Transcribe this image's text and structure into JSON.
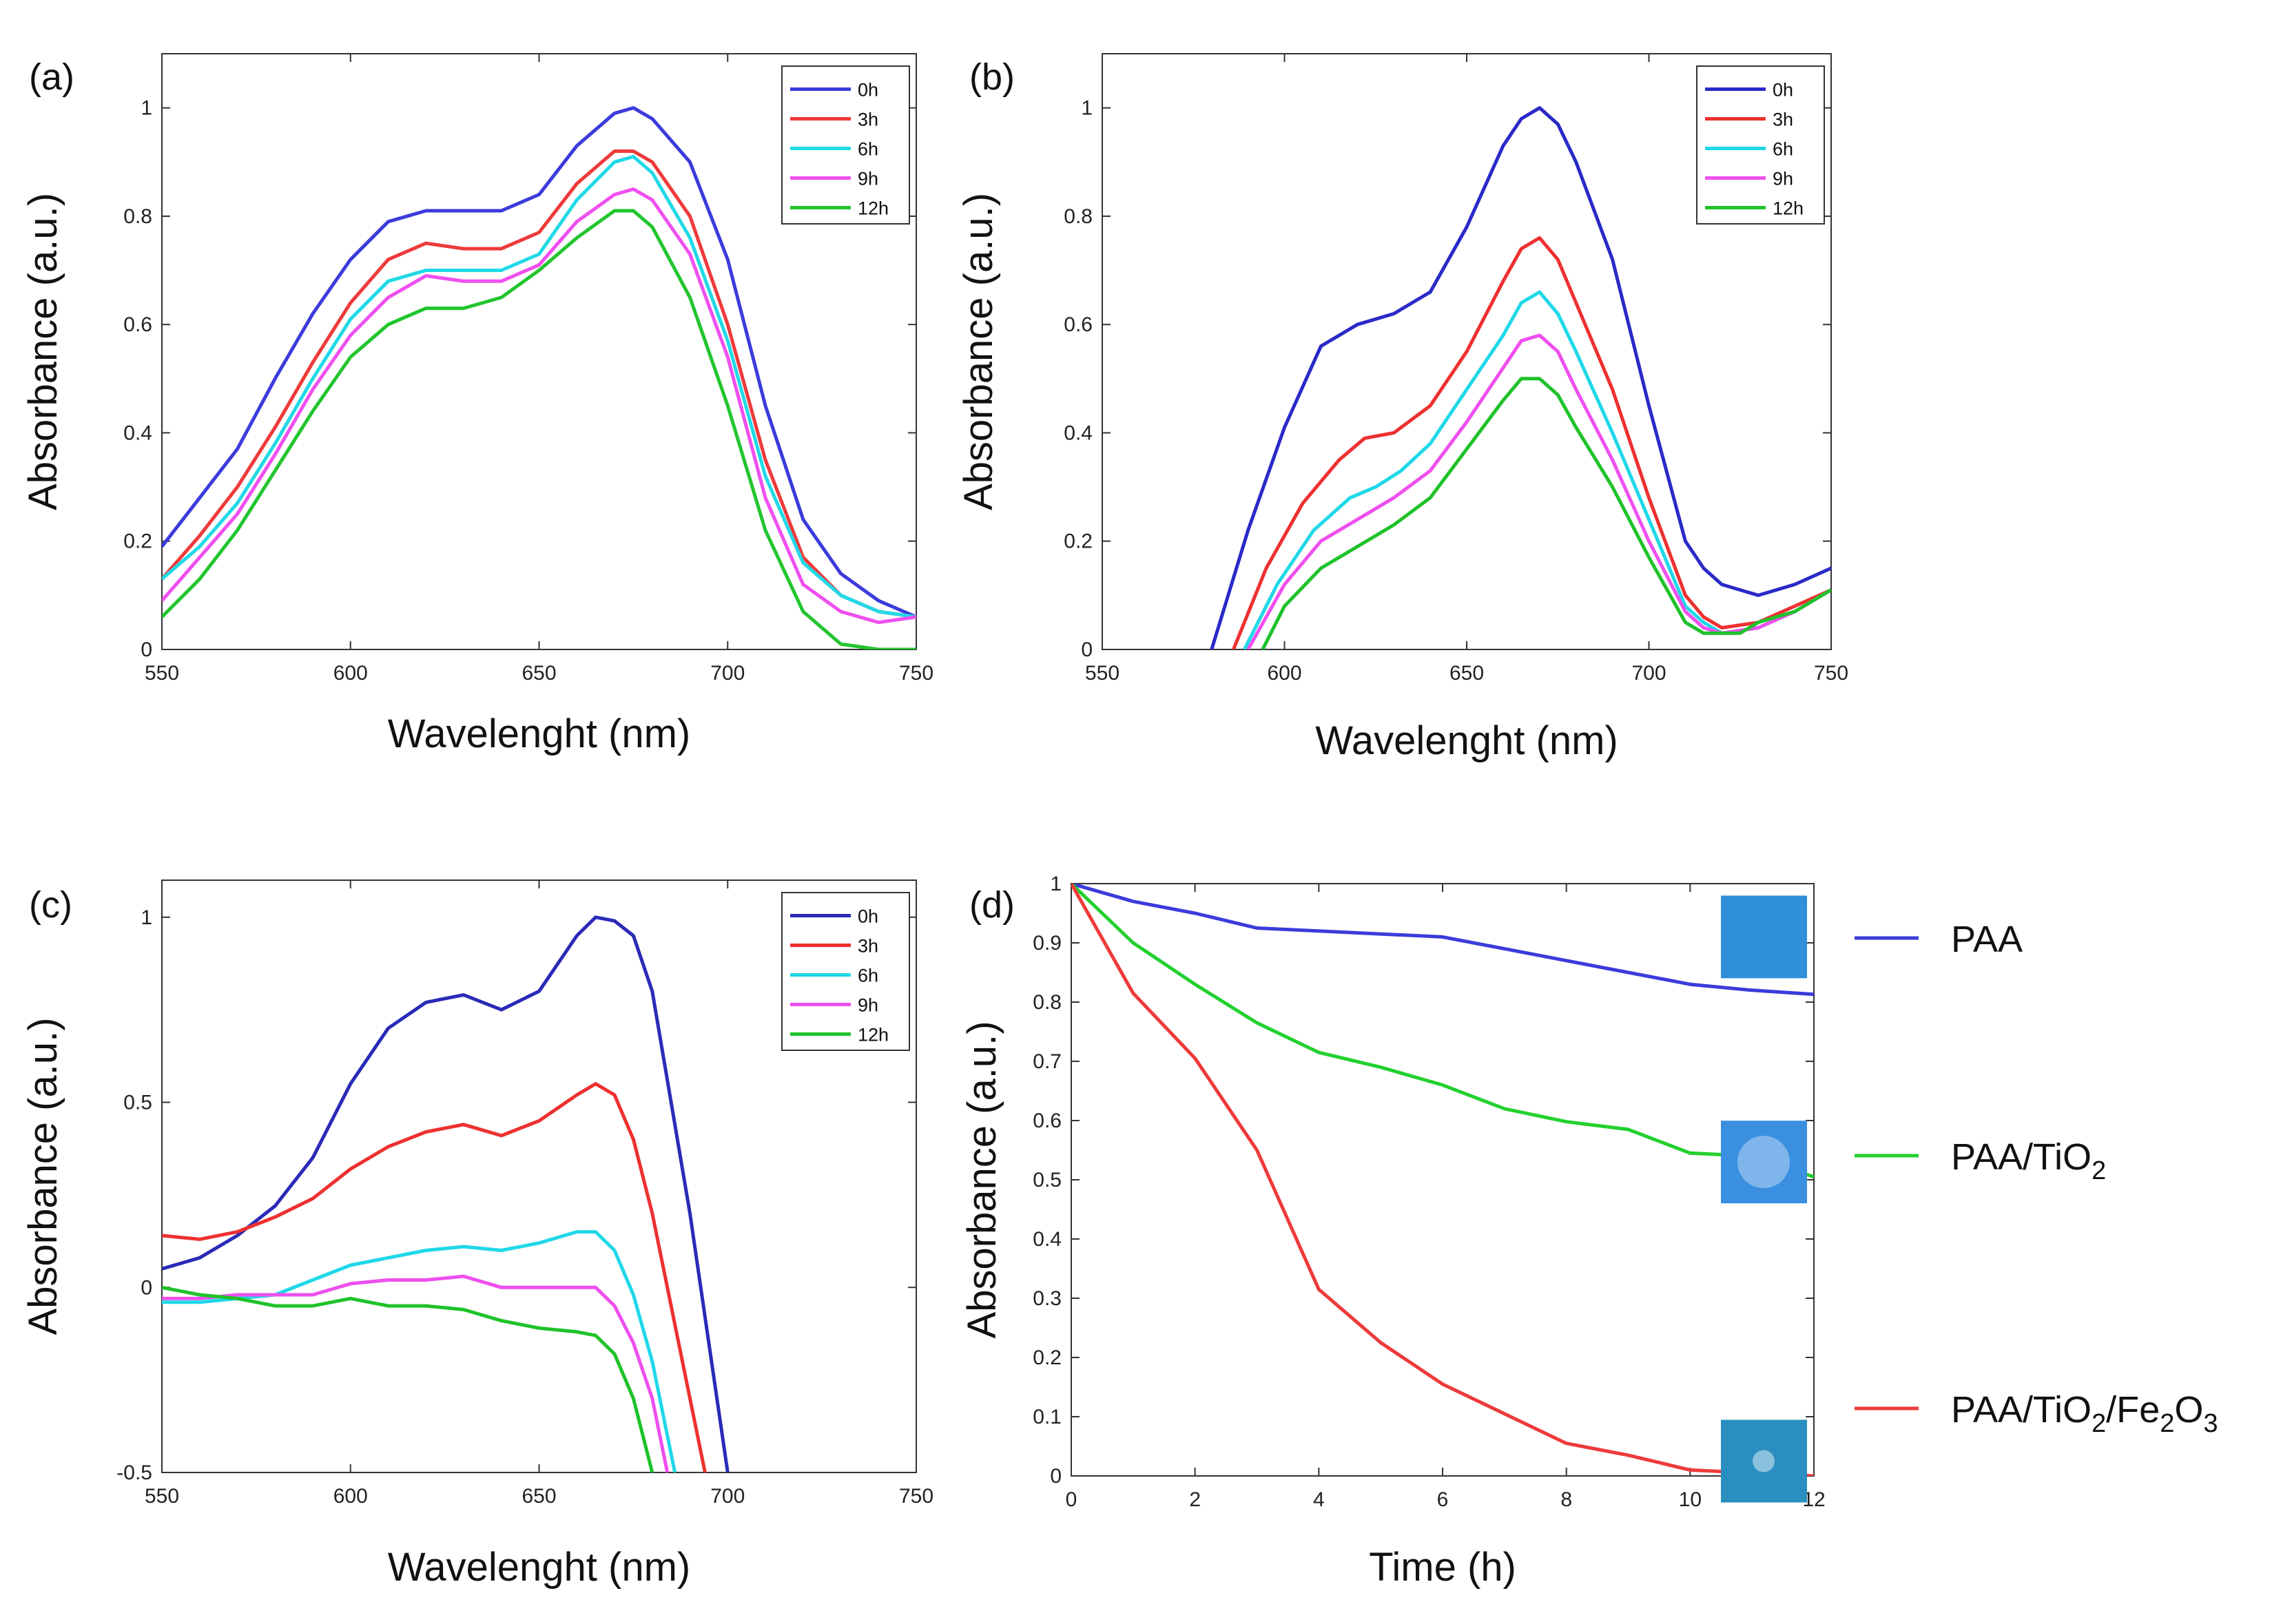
{
  "chart_data": [
    {
      "panel": "(a)",
      "type": "line",
      "xlabel": "Wavelenght (nm)",
      "ylabel": "Absorbance  (a.u.)",
      "xlim": [
        550,
        750
      ],
      "ylim": [
        0,
        1.1
      ],
      "xticks": [
        550,
        600,
        650,
        700,
        750
      ],
      "yticks": [
        0,
        0.2,
        0.4,
        0.6,
        0.8,
        1
      ],
      "legend": "top-right",
      "colors": [
        "#3b3bdc",
        "#ee3a3a",
        "#21d9e6",
        "#ef4fef",
        "#22c52e"
      ],
      "series": [
        {
          "name": "0h",
          "x": [
            550,
            560,
            570,
            580,
            590,
            600,
            610,
            620,
            630,
            640,
            650,
            660,
            670,
            675,
            680,
            690,
            700,
            710,
            720,
            730,
            740,
            750
          ],
          "y": [
            0.19,
            0.28,
            0.37,
            0.5,
            0.62,
            0.72,
            0.79,
            0.81,
            0.81,
            0.81,
            0.84,
            0.93,
            0.99,
            1.0,
            0.98,
            0.9,
            0.72,
            0.45,
            0.24,
            0.14,
            0.09,
            0.06
          ]
        },
        {
          "name": "3h",
          "x": [
            550,
            560,
            570,
            580,
            590,
            600,
            610,
            620,
            630,
            640,
            650,
            660,
            670,
            675,
            680,
            690,
            700,
            710,
            720,
            730,
            740,
            750
          ],
          "y": [
            0.13,
            0.21,
            0.3,
            0.41,
            0.53,
            0.64,
            0.72,
            0.75,
            0.74,
            0.74,
            0.77,
            0.86,
            0.92,
            0.92,
            0.9,
            0.8,
            0.6,
            0.35,
            0.17,
            0.1,
            0.07,
            0.06
          ]
        },
        {
          "name": "6h",
          "x": [
            550,
            560,
            570,
            580,
            590,
            600,
            610,
            620,
            630,
            640,
            650,
            660,
            670,
            675,
            680,
            690,
            700,
            710,
            720,
            730,
            740,
            750
          ],
          "y": [
            0.13,
            0.19,
            0.27,
            0.38,
            0.5,
            0.61,
            0.68,
            0.7,
            0.7,
            0.7,
            0.73,
            0.83,
            0.9,
            0.91,
            0.88,
            0.76,
            0.57,
            0.32,
            0.16,
            0.1,
            0.07,
            0.06
          ]
        },
        {
          "name": "9h",
          "x": [
            550,
            560,
            570,
            580,
            590,
            600,
            610,
            620,
            630,
            640,
            650,
            660,
            670,
            675,
            680,
            690,
            700,
            710,
            720,
            730,
            740,
            750
          ],
          "y": [
            0.09,
            0.17,
            0.25,
            0.36,
            0.48,
            0.58,
            0.65,
            0.69,
            0.68,
            0.68,
            0.71,
            0.79,
            0.84,
            0.85,
            0.83,
            0.73,
            0.54,
            0.28,
            0.12,
            0.07,
            0.05,
            0.06
          ]
        },
        {
          "name": "12h",
          "x": [
            550,
            560,
            570,
            580,
            590,
            600,
            610,
            620,
            630,
            640,
            650,
            660,
            670,
            675,
            680,
            690,
            700,
            710,
            720,
            730,
            740,
            750
          ],
          "y": [
            0.06,
            0.13,
            0.22,
            0.33,
            0.44,
            0.54,
            0.6,
            0.63,
            0.63,
            0.65,
            0.7,
            0.76,
            0.81,
            0.81,
            0.78,
            0.65,
            0.45,
            0.22,
            0.07,
            0.01,
            0.0,
            0.0
          ]
        }
      ]
    },
    {
      "panel": "(b)",
      "type": "line",
      "xlabel": "Wavelenght (nm)",
      "ylabel": "Absorbance  (a.u.)",
      "xlim": [
        550,
        750
      ],
      "ylim": [
        0,
        1.1
      ],
      "xticks": [
        550,
        600,
        650,
        700,
        750
      ],
      "yticks": [
        0,
        0.2,
        0.4,
        0.6,
        0.8,
        1
      ],
      "legend": "top-right",
      "colors": [
        "#2a2ac8",
        "#ee3030",
        "#1fd8e8",
        "#ee4fee",
        "#1fc22a"
      ],
      "series": [
        {
          "name": "0h",
          "x": [
            580,
            590,
            600,
            610,
            620,
            630,
            640,
            650,
            660,
            665,
            670,
            675,
            680,
            690,
            700,
            710,
            715,
            720,
            730,
            740,
            750
          ],
          "y": [
            0.0,
            0.22,
            0.41,
            0.56,
            0.6,
            0.62,
            0.66,
            0.78,
            0.93,
            0.98,
            1.0,
            0.97,
            0.9,
            0.72,
            0.45,
            0.2,
            0.15,
            0.12,
            0.1,
            0.12,
            0.15
          ]
        },
        {
          "name": "3h",
          "x": [
            586,
            595,
            605,
            615,
            622,
            630,
            640,
            650,
            660,
            665,
            670,
            675,
            680,
            690,
            700,
            710,
            715,
            720,
            730,
            740,
            750
          ],
          "y": [
            0.0,
            0.15,
            0.27,
            0.35,
            0.39,
            0.4,
            0.45,
            0.55,
            0.68,
            0.74,
            0.76,
            0.72,
            0.64,
            0.48,
            0.28,
            0.1,
            0.06,
            0.04,
            0.05,
            0.08,
            0.11
          ]
        },
        {
          "name": "6h",
          "x": [
            589,
            598,
            608,
            618,
            625,
            632,
            640,
            650,
            660,
            665,
            670,
            675,
            680,
            690,
            700,
            710,
            715,
            720,
            730,
            740,
            750
          ],
          "y": [
            0.0,
            0.12,
            0.22,
            0.28,
            0.3,
            0.33,
            0.38,
            0.48,
            0.58,
            0.64,
            0.66,
            0.62,
            0.55,
            0.4,
            0.24,
            0.08,
            0.05,
            0.03,
            0.04,
            0.07,
            0.11
          ]
        },
        {
          "name": "9h",
          "x": [
            590,
            600,
            610,
            620,
            630,
            640,
            650,
            660,
            665,
            670,
            675,
            680,
            690,
            700,
            710,
            715,
            720,
            730,
            740,
            750
          ],
          "y": [
            0.0,
            0.12,
            0.2,
            0.24,
            0.28,
            0.33,
            0.42,
            0.52,
            0.57,
            0.58,
            0.55,
            0.48,
            0.35,
            0.2,
            0.07,
            0.04,
            0.03,
            0.04,
            0.07,
            0.11
          ]
        },
        {
          "name": "12h",
          "x": [
            594,
            600,
            610,
            620,
            630,
            640,
            650,
            660,
            665,
            670,
            675,
            680,
            690,
            700,
            710,
            715,
            720,
            725,
            730,
            740,
            750
          ],
          "y": [
            0.0,
            0.08,
            0.15,
            0.19,
            0.23,
            0.28,
            0.37,
            0.46,
            0.5,
            0.5,
            0.47,
            0.41,
            0.3,
            0.17,
            0.05,
            0.03,
            0.03,
            0.03,
            0.05,
            0.07,
            0.11
          ]
        }
      ]
    },
    {
      "panel": "(c)",
      "type": "line",
      "xlabel": "Wavelenght (nm)",
      "ylabel": "Absorbance  (a.u.)",
      "xlim": [
        550,
        750
      ],
      "ylim": [
        -0.5,
        1.1
      ],
      "xticks": [
        550,
        600,
        650,
        700,
        750
      ],
      "yticks": [
        -0.5,
        0,
        0.5,
        1
      ],
      "legend": "top-right",
      "colors": [
        "#2a2ab8",
        "#ee3030",
        "#1fd8e8",
        "#ee4fee",
        "#1fc22a"
      ],
      "series": [
        {
          "name": "0h",
          "x": [
            550,
            560,
            570,
            580,
            590,
            600,
            610,
            620,
            630,
            640,
            650,
            660,
            665,
            670,
            675,
            680,
            690,
            700
          ],
          "y": [
            0.05,
            0.08,
            0.14,
            0.22,
            0.35,
            0.55,
            0.7,
            0.77,
            0.79,
            0.75,
            0.8,
            0.95,
            1.0,
            0.99,
            0.95,
            0.8,
            0.2,
            -0.5
          ]
        },
        {
          "name": "3h",
          "x": [
            550,
            560,
            570,
            580,
            590,
            600,
            610,
            620,
            630,
            640,
            650,
            660,
            665,
            670,
            675,
            680,
            690,
            694
          ],
          "y": [
            0.14,
            0.13,
            0.15,
            0.19,
            0.24,
            0.32,
            0.38,
            0.42,
            0.44,
            0.41,
            0.45,
            0.52,
            0.55,
            0.52,
            0.4,
            0.2,
            -0.3,
            -0.5
          ]
        },
        {
          "name": "6h",
          "x": [
            550,
            560,
            570,
            580,
            590,
            600,
            610,
            620,
            630,
            640,
            650,
            660,
            665,
            670,
            675,
            680,
            686
          ],
          "y": [
            -0.04,
            -0.04,
            -0.03,
            -0.02,
            0.02,
            0.06,
            0.08,
            0.1,
            0.11,
            0.1,
            0.12,
            0.15,
            0.15,
            0.1,
            -0.02,
            -0.2,
            -0.5
          ]
        },
        {
          "name": "9h",
          "x": [
            550,
            560,
            570,
            580,
            590,
            600,
            610,
            620,
            630,
            640,
            650,
            660,
            665,
            670,
            675,
            680,
            684
          ],
          "y": [
            -0.03,
            -0.03,
            -0.02,
            -0.02,
            -0.02,
            0.01,
            0.02,
            0.02,
            0.03,
            0.0,
            0.0,
            0.0,
            0.0,
            -0.05,
            -0.15,
            -0.3,
            -0.5
          ]
        },
        {
          "name": "12h",
          "x": [
            550,
            560,
            570,
            580,
            590,
            600,
            610,
            620,
            630,
            640,
            650,
            660,
            665,
            670,
            675,
            680
          ],
          "y": [
            0.0,
            -0.02,
            -0.03,
            -0.05,
            -0.05,
            -0.03,
            -0.05,
            -0.05,
            -0.06,
            -0.09,
            -0.11,
            -0.12,
            -0.13,
            -0.18,
            -0.3,
            -0.5
          ]
        }
      ]
    },
    {
      "panel": "(d)",
      "type": "line",
      "xlabel": "Time (h)",
      "ylabel": "Absorbance  (a.u.)",
      "xlim": [
        0,
        12
      ],
      "ylim": [
        0,
        1
      ],
      "xticks": [
        0,
        2,
        4,
        6,
        8,
        10,
        12
      ],
      "yticks": [
        0,
        0.1,
        0.2,
        0.3,
        0.4,
        0.5,
        0.6,
        0.7,
        0.8,
        0.9,
        1
      ],
      "legend": "right-outside",
      "colors": [
        "#3b3bdc",
        "#22d02e",
        "#ee3a3a"
      ],
      "inset_colors": [
        "#2f8fd8",
        "#3a8fe0",
        "#2a8ec0"
      ],
      "series": [
        {
          "name": "PAA",
          "x": [
            0,
            1,
            2,
            3,
            4,
            5,
            6,
            7,
            8,
            9,
            10,
            11,
            12
          ],
          "y": [
            1.0,
            0.97,
            0.95,
            0.925,
            0.92,
            0.915,
            0.91,
            0.89,
            0.87,
            0.85,
            0.83,
            0.82,
            0.813
          ]
        },
        {
          "name": "PAA/TiO2",
          "x": [
            0,
            1,
            2,
            3,
            4,
            5,
            6,
            7,
            8,
            9,
            10,
            11,
            12
          ],
          "y": [
            1.0,
            0.9,
            0.83,
            0.765,
            0.715,
            0.69,
            0.66,
            0.62,
            0.598,
            0.585,
            0.545,
            0.54,
            0.505
          ]
        },
        {
          "name": "PAA/TiO2/Fe2O3",
          "x": [
            0,
            1,
            2,
            3,
            4,
            5,
            6,
            7,
            8,
            9,
            10,
            11,
            12
          ],
          "y": [
            1.0,
            0.815,
            0.705,
            0.55,
            0.315,
            0.225,
            0.155,
            0.105,
            0.055,
            0.035,
            0.01,
            0.005,
            0.0
          ]
        }
      ],
      "legend_parts": [
        [
          {
            "t": "PAA"
          }
        ],
        [
          {
            "t": "PAA/TiO"
          },
          {
            "t": "2",
            "sub": true
          }
        ],
        [
          {
            "t": "PAA/TiO"
          },
          {
            "t": "2",
            "sub": true
          },
          {
            "t": "/Fe"
          },
          {
            "t": "2",
            "sub": true
          },
          {
            "t": "O"
          },
          {
            "t": "3",
            "sub": true
          }
        ]
      ]
    }
  ]
}
